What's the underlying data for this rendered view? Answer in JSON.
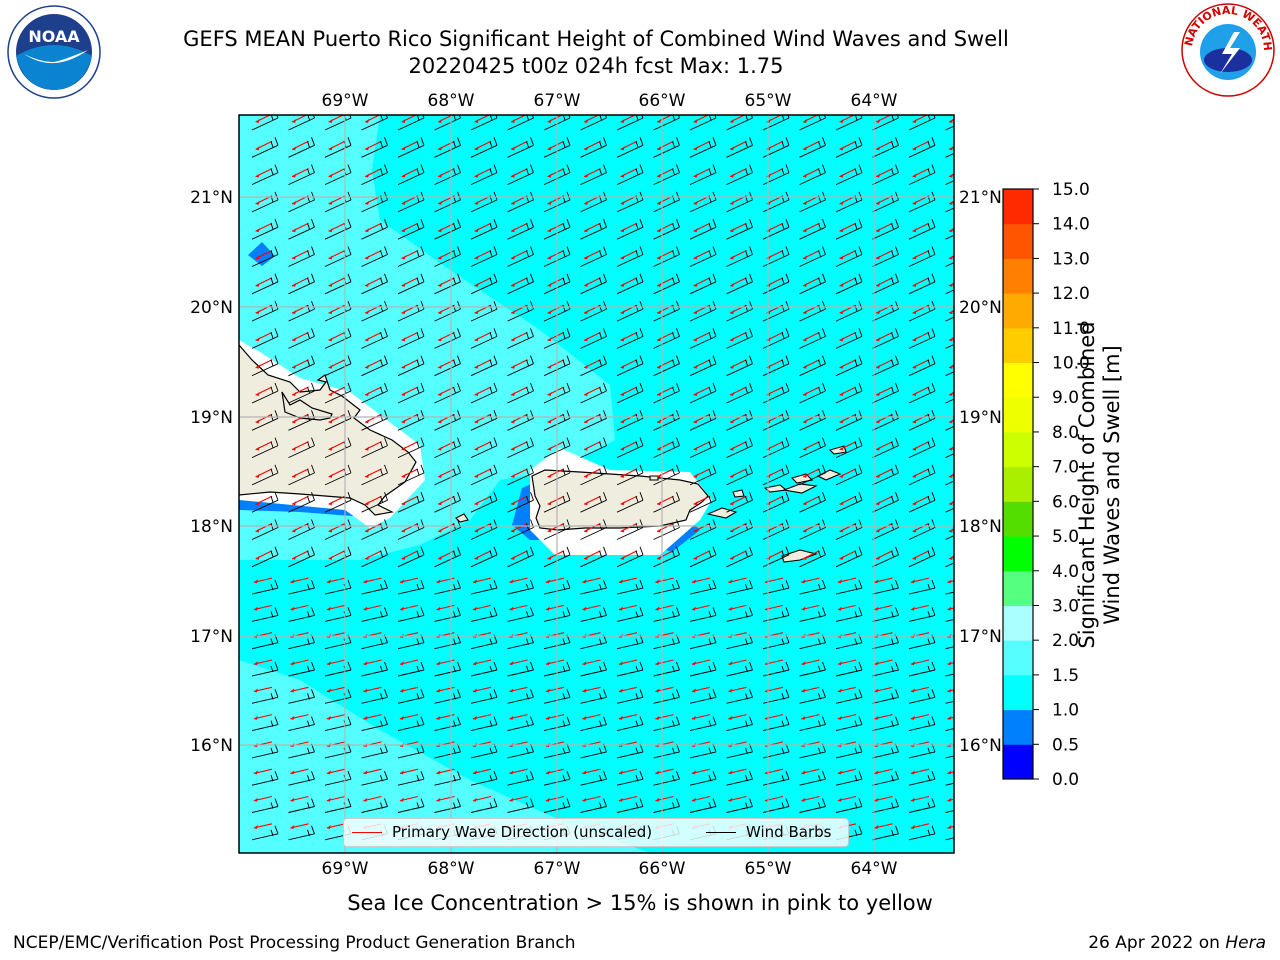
{
  "title": {
    "line1": "GEFS MEAN Puerto Rico Significant Height of Combined Wind Waves and Swell",
    "line2": "20220425 t00z 024h fcst   Max: 1.75"
  },
  "logos": {
    "left": {
      "icon": "noaa-logo-icon",
      "text": "NOAA",
      "ring_text": "NATIONAL OCEANIC AND ATMOSPHERIC ADMINISTRATION · U.S. DEPARTMENT OF COMMERCE"
    },
    "right": {
      "icon": "nws-logo-icon",
      "ring_text": "NATIONAL WEATHER SERVICE"
    }
  },
  "map": {
    "lon_labels": [
      "69°W",
      "68°W",
      "67°W",
      "66°W",
      "65°W",
      "64°W"
    ],
    "lat_labels": [
      "21°N",
      "20°N",
      "19°N",
      "18°N",
      "17°N",
      "16°N"
    ],
    "lon_range": [
      -70,
      -63.25
    ],
    "lat_range": [
      15,
      21.75
    ],
    "gridlines": true,
    "land_color": "#efedde",
    "coast_color": "#000000",
    "wave_arrow_color": "#ff0000",
    "barb_color": "#000000"
  },
  "colorbar": {
    "title_line1": "Significant Height of Combined",
    "title_line2": "Wind Waves and Swell [m]",
    "levels": [
      "0.0",
      "0.5",
      "1.0",
      "1.5",
      "2.0",
      "3.0",
      "4.0",
      "5.0",
      "6.0",
      "7.0",
      "8.0",
      "9.0",
      "10.0",
      "11.0",
      "12.0",
      "13.0",
      "14.0",
      "15.0"
    ],
    "colors": [
      "#0000ff",
      "#0080ff",
      "#00ffff",
      "#55ffff",
      "#aaffff",
      "#55ff80",
      "#00ff00",
      "#55dd00",
      "#aaee00",
      "#ccff00",
      "#eeff00",
      "#ffff00",
      "#ffcc00",
      "#ffaa00",
      "#ff8000",
      "#ff5500",
      "#ff2a00",
      "#ff0000"
    ]
  },
  "legend": {
    "wave_label": "Primary Wave Direction (unscaled)",
    "barb_label": "Wind Barbs",
    "wave_color": "#ff0000",
    "barb_color": "#000000"
  },
  "ice_note": "Sea Ice Concentration > 15% is shown in pink to yellow",
  "footer": {
    "credit": "NCEP/EMC/Verification Post Processing Product Generation Branch",
    "date": "26 Apr 2022 on ",
    "host": "Hera"
  }
}
